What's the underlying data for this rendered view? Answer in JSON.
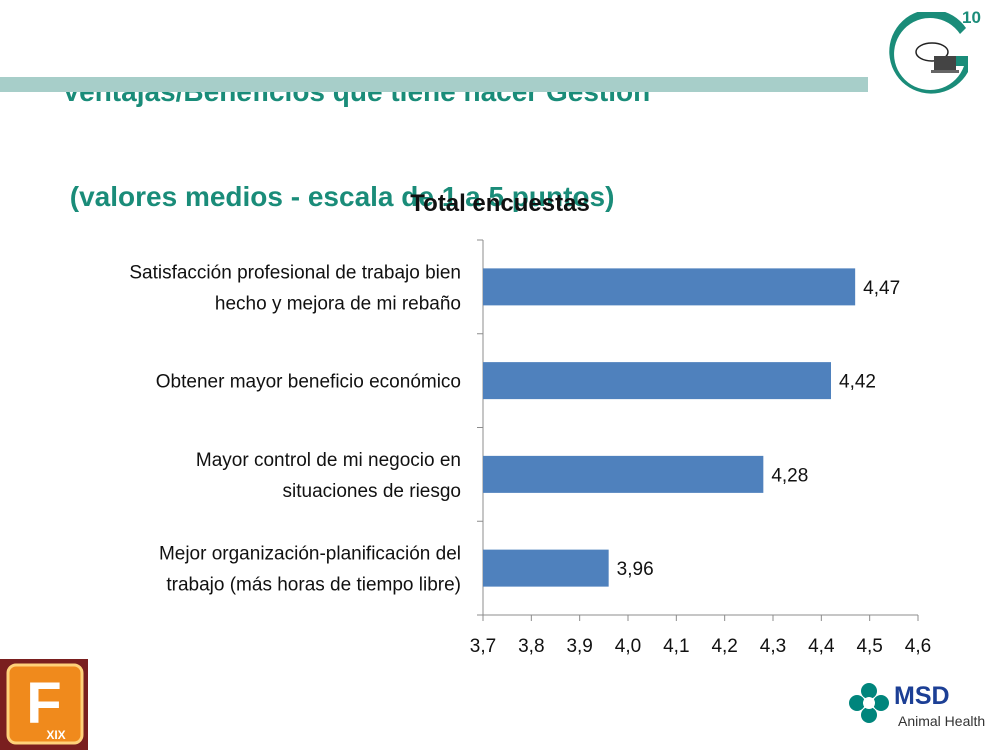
{
  "slide": {
    "title_lines": [
      "Ventajas/Beneficios que tiene hacer Gestión",
      " (valores medios - escala de 1 a 5 puntos)"
    ],
    "page_number": "10",
    "colors": {
      "title": "#1a8c79",
      "band": "#a7cec9",
      "bar": "#4f81bd"
    }
  },
  "logos": {
    "fxix_letter": "F",
    "fxix_sub": "XIX",
    "msd_name": "MSD",
    "msd_sub": "Animal Health"
  },
  "chart_data": {
    "type": "bar",
    "orientation": "horizontal",
    "title": "Total encuestas",
    "categories": [
      [
        "Satisfacción profesional de trabajo bien",
        "hecho y mejora de mi rebaño"
      ],
      [
        "Obtener mayor beneficio económico"
      ],
      [
        "Mayor control de mi negocio en",
        "situaciones de riesgo"
      ],
      [
        "Mejor organización-planificación del",
        "trabajo (más horas de tiempo libre)"
      ]
    ],
    "values": [
      4.47,
      4.42,
      4.28,
      3.96
    ],
    "value_labels": [
      "4,47",
      "4,42",
      "4,28",
      "3,96"
    ],
    "xlim": [
      3.7,
      4.6
    ],
    "x_ticks": [
      3.7,
      3.8,
      3.9,
      4.0,
      4.1,
      4.2,
      4.3,
      4.4,
      4.5,
      4.6
    ],
    "x_tick_labels": [
      "3,7",
      "3,8",
      "3,9",
      "4,0",
      "4,1",
      "4,2",
      "4,3",
      "4,4",
      "4,5",
      "4,6"
    ],
    "grid": false,
    "legend": "none",
    "bar_color": "#4f81bd"
  }
}
